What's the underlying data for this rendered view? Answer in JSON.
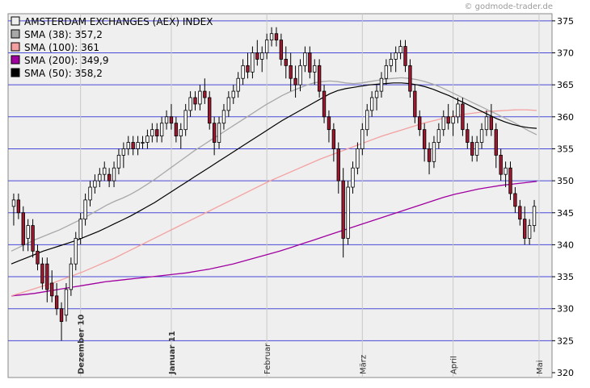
{
  "watermark": "© godmode-trader.de",
  "chart_data": {
    "type": "candlestick",
    "title": "AMSTERDAM EXCHANGES (AEX) INDEX",
    "ylim": [
      320,
      376
    ],
    "yticks": [
      320,
      325,
      330,
      335,
      340,
      345,
      350,
      355,
      360,
      365,
      370,
      375
    ],
    "grid": true,
    "legend_position": "top-left",
    "x_labels": [
      {
        "label": "Dezember 10",
        "bold": true,
        "index": 14
      },
      {
        "label": "Januar 11",
        "bold": true,
        "index": 33
      },
      {
        "label": "Februar",
        "bold": false,
        "index": 53
      },
      {
        "label": "März",
        "bold": false,
        "index": 73
      },
      {
        "label": "April",
        "bold": false,
        "index": 92
      },
      {
        "label": "Mai",
        "bold": false,
        "index": 110
      }
    ],
    "legend": [
      {
        "label": "AMSTERDAM EXCHANGES (AEX) INDEX",
        "color": "#eeeeee"
      },
      {
        "label": "SMA (38): 357,2",
        "color": "#a8a8a8"
      },
      {
        "label": "SMA (100): 361",
        "color": "#f4a0a0"
      },
      {
        "label": "SMA (200): 349,9",
        "color": "#a000a0"
      },
      {
        "label": "SMA (50): 358,2",
        "color": "#000000"
      }
    ],
    "ohlc": [
      [
        346,
        348,
        343,
        347
      ],
      [
        347,
        348,
        344,
        345
      ],
      [
        345,
        346,
        339,
        340
      ],
      [
        341,
        344,
        339,
        343
      ],
      [
        343,
        344,
        338,
        339
      ],
      [
        339,
        340,
        336,
        337
      ],
      [
        337,
        338,
        333,
        334
      ],
      [
        337,
        338,
        331,
        333
      ],
      [
        334,
        336,
        331,
        332
      ],
      [
        332,
        334,
        329,
        330
      ],
      [
        330,
        331,
        325,
        328
      ],
      [
        329,
        334,
        328,
        333
      ],
      [
        333,
        338,
        332,
        337
      ],
      [
        337,
        342,
        336,
        341
      ],
      [
        341,
        345,
        340,
        344
      ],
      [
        344,
        348,
        343,
        347
      ],
      [
        347,
        350,
        346,
        349
      ],
      [
        349,
        351,
        348,
        350
      ],
      [
        350,
        352,
        349,
        351
      ],
      [
        351,
        353,
        350,
        352
      ],
      [
        351,
        352,
        349,
        350
      ],
      [
        350,
        353,
        349,
        352
      ],
      [
        352,
        355,
        351,
        354
      ],
      [
        354,
        356,
        352,
        355
      ],
      [
        355,
        357,
        354,
        356
      ],
      [
        356,
        357,
        354,
        355
      ],
      [
        355,
        357,
        354,
        356
      ],
      [
        356,
        357,
        355,
        356
      ],
      [
        356,
        358,
        355,
        357
      ],
      [
        357,
        359,
        356,
        358
      ],
      [
        358,
        359,
        356,
        357
      ],
      [
        357,
        360,
        356,
        359
      ],
      [
        359,
        361,
        358,
        360
      ],
      [
        360,
        362,
        358,
        359
      ],
      [
        359,
        360,
        356,
        357
      ],
      [
        357,
        359,
        355,
        358
      ],
      [
        358,
        362,
        357,
        361
      ],
      [
        361,
        364,
        360,
        363
      ],
      [
        363,
        364,
        361,
        362
      ],
      [
        362,
        365,
        361,
        364
      ],
      [
        364,
        366,
        362,
        363
      ],
      [
        363,
        364,
        358,
        359
      ],
      [
        359,
        360,
        354,
        356
      ],
      [
        356,
        360,
        355,
        359
      ],
      [
        359,
        362,
        358,
        361
      ],
      [
        361,
        364,
        360,
        363
      ],
      [
        363,
        365,
        362,
        364
      ],
      [
        364,
        367,
        363,
        366
      ],
      [
        366,
        369,
        365,
        368
      ],
      [
        368,
        370,
        366,
        367
      ],
      [
        367,
        371,
        366,
        370
      ],
      [
        370,
        372,
        368,
        369
      ],
      [
        369,
        371,
        367,
        370
      ],
      [
        370,
        373,
        369,
        372
      ],
      [
        372,
        374,
        371,
        373
      ],
      [
        373,
        374,
        371,
        372
      ],
      [
        372,
        373,
        368,
        369
      ],
      [
        369,
        371,
        366,
        368
      ],
      [
        368,
        370,
        364,
        366
      ],
      [
        366,
        368,
        363,
        365
      ],
      [
        365,
        369,
        364,
        368
      ],
      [
        368,
        371,
        367,
        370
      ],
      [
        370,
        371,
        366,
        367
      ],
      [
        367,
        369,
        365,
        368
      ],
      [
        368,
        369,
        363,
        364
      ],
      [
        364,
        365,
        359,
        360
      ],
      [
        360,
        361,
        356,
        358
      ],
      [
        358,
        359,
        353,
        355
      ],
      [
        355,
        356,
        348,
        350
      ],
      [
        350,
        352,
        338,
        341
      ],
      [
        341,
        350,
        340,
        349
      ],
      [
        349,
        353,
        348,
        352
      ],
      [
        352,
        356,
        351,
        355
      ],
      [
        355,
        359,
        354,
        358
      ],
      [
        358,
        362,
        357,
        361
      ],
      [
        361,
        364,
        360,
        363
      ],
      [
        363,
        365,
        361,
        364
      ],
      [
        364,
        367,
        363,
        366
      ],
      [
        366,
        369,
        365,
        368
      ],
      [
        368,
        370,
        367,
        369
      ],
      [
        369,
        371,
        367,
        370
      ],
      [
        370,
        372,
        369,
        371
      ],
      [
        371,
        372,
        367,
        368
      ],
      [
        368,
        369,
        363,
        364
      ],
      [
        364,
        365,
        359,
        360
      ],
      [
        360,
        361,
        357,
        358
      ],
      [
        358,
        359,
        353,
        355
      ],
      [
        355,
        356,
        351,
        353
      ],
      [
        353,
        357,
        352,
        356
      ],
      [
        356,
        359,
        355,
        358
      ],
      [
        358,
        361,
        357,
        360
      ],
      [
        360,
        362,
        358,
        359
      ],
      [
        359,
        361,
        357,
        360
      ],
      [
        360,
        363,
        359,
        362
      ],
      [
        362,
        363,
        357,
        358
      ],
      [
        358,
        359,
        355,
        356
      ],
      [
        356,
        357,
        353,
        354
      ],
      [
        354,
        357,
        353,
        356
      ],
      [
        356,
        359,
        355,
        358
      ],
      [
        358,
        361,
        357,
        360
      ],
      [
        360,
        362,
        357,
        358
      ],
      [
        358,
        359,
        352,
        354
      ],
      [
        354,
        355,
        350,
        351
      ],
      [
        351,
        353,
        349,
        352
      ],
      [
        352,
        353,
        347,
        348
      ],
      [
        348,
        349,
        345,
        346
      ],
      [
        346,
        347,
        343,
        344
      ],
      [
        344,
        346,
        340,
        341
      ],
      [
        341,
        344,
        340,
        343
      ],
      [
        343,
        347,
        342,
        346
      ]
    ],
    "sma38": [
      339,
      339.6,
      340.2,
      340.8,
      341.3,
      341.8,
      342.3,
      342.9,
      343.5,
      344.1,
      344.8,
      345.5,
      346.2,
      346.8,
      347.3,
      347.9,
      348.6,
      349.4,
      350.2,
      351.1,
      352.0,
      352.9,
      353.8,
      354.7,
      355.5,
      356.3,
      357.1,
      357.9,
      358.7,
      359.5,
      360.3,
      361.1,
      361.9,
      362.6,
      363.3,
      363.9,
      364.4,
      364.9,
      365.3,
      365.5,
      365.6,
      365.5,
      365.3,
      365.2,
      365.3,
      365.5,
      365.7,
      365.9,
      366.0,
      366.1,
      366.0,
      365.8,
      365.5,
      365.1,
      364.6,
      364.0,
      363.4,
      362.8,
      362.2,
      361.6,
      361.0,
      360.4,
      359.8,
      359.2,
      358.5,
      357.8,
      357.2
    ],
    "sma50": [
      337.0,
      337.5,
      338.0,
      338.5,
      339.0,
      339.4,
      339.8,
      340.2,
      340.6,
      341.1,
      341.6,
      342.1,
      342.7,
      343.3,
      343.9,
      344.5,
      345.2,
      345.9,
      346.6,
      347.4,
      348.2,
      349.0,
      349.8,
      350.6,
      351.4,
      352.2,
      353.0,
      353.8,
      354.6,
      355.4,
      356.2,
      357.0,
      357.8,
      358.6,
      359.4,
      360.1,
      360.8,
      361.5,
      362.2,
      362.9,
      363.6,
      364.1,
      364.4,
      364.6,
      364.8,
      365.0,
      365.1,
      365.2,
      365.3,
      365.3,
      365.2,
      365.0,
      364.7,
      364.3,
      363.8,
      363.3,
      362.7,
      362.1,
      361.5,
      360.9,
      360.3,
      359.7,
      359.2,
      358.8,
      358.5,
      358.3,
      358.2
    ],
    "sma100": [
      332.0,
      332.5,
      333.0,
      333.5,
      334.0,
      334.6,
      335.2,
      335.8,
      336.5,
      337.2,
      337.9,
      338.7,
      339.5,
      340.3,
      341.1,
      341.9,
      342.7,
      343.5,
      344.3,
      345.1,
      345.9,
      346.7,
      347.5,
      348.3,
      349.1,
      349.9,
      350.6,
      351.3,
      352.0,
      352.7,
      353.4,
      354.0,
      354.6,
      355.2,
      355.8,
      356.4,
      357.0,
      357.5,
      358.0,
      358.5,
      359.0,
      359.4,
      359.8,
      360.1,
      360.4,
      360.6,
      360.8,
      360.9,
      361.0,
      361.1,
      361.1,
      361.0
    ],
    "sma200": [
      332.0,
      332.2,
      332.4,
      332.7,
      333.0,
      333.3,
      333.6,
      333.9,
      334.2,
      334.4,
      334.6,
      334.8,
      335.0,
      335.2,
      335.4,
      335.6,
      335.9,
      336.2,
      336.6,
      337.0,
      337.5,
      338.0,
      338.5,
      339.0,
      339.6,
      340.2,
      340.8,
      341.4,
      342.0,
      342.6,
      343.2,
      343.8,
      344.4,
      345.0,
      345.6,
      346.2,
      346.8,
      347.4,
      347.9,
      348.3,
      348.7,
      349.0,
      349.3,
      349.5,
      349.7,
      349.9
    ]
  }
}
